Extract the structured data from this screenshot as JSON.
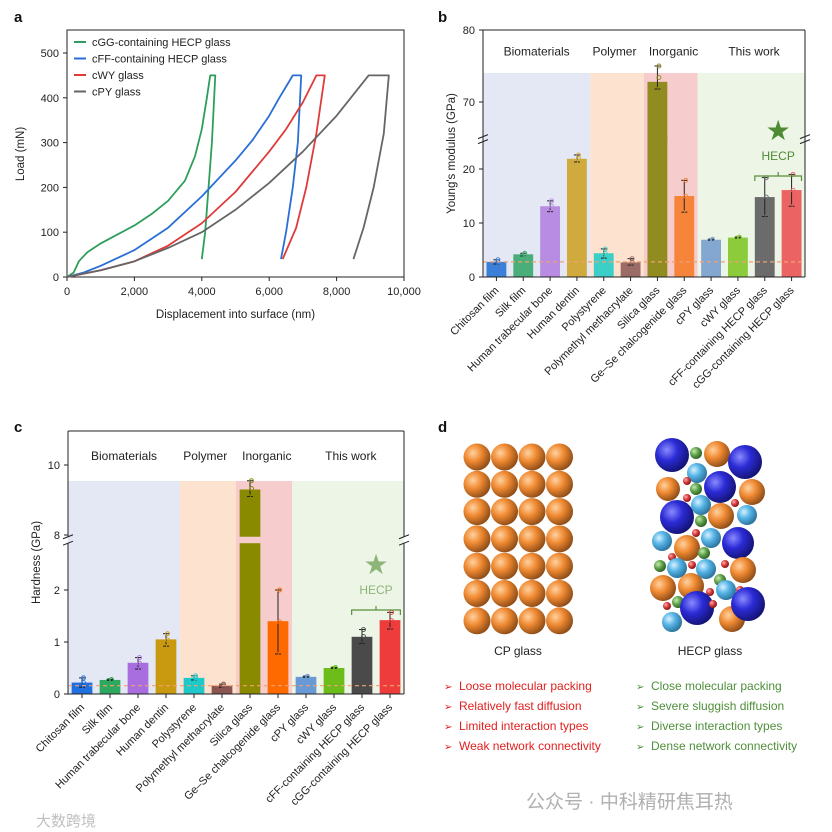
{
  "panel_labels": [
    "a",
    "b",
    "c",
    "d"
  ],
  "chart_data": [
    {
      "type": "line",
      "xlabel": "Displacement into surface (nm)",
      "ylabel": "Load (mN)",
      "xlim": [
        0,
        10000
      ],
      "ylim": [
        0,
        550
      ],
      "xticks": [
        "0",
        "2,000",
        "4,000",
        "6,000",
        "8,000",
        "10,000"
      ],
      "xtick_values": [
        0,
        2000,
        4000,
        6000,
        8000,
        10000
      ],
      "yticks": [
        "0",
        "100",
        "200",
        "300",
        "400",
        "500"
      ],
      "ytick_values": [
        0,
        100,
        200,
        300,
        400,
        500
      ],
      "legend_position": "top-left",
      "series": [
        {
          "name": "cGG-containing HECP glass",
          "color": "#2e9e5b",
          "x": [
            0,
            200,
            350,
            600,
            1000,
            1500,
            2000,
            2500,
            3000,
            3500,
            3800,
            4000,
            4150,
            4250,
            4400,
            4400,
            4300,
            4200,
            4100,
            4000
          ],
          "y": [
            0,
            10,
            35,
            55,
            75,
            95,
            115,
            140,
            170,
            215,
            270,
            330,
            400,
            450,
            450,
            450,
            300,
            200,
            100,
            40
          ]
        },
        {
          "name": "cFF-containing HECP glass",
          "color": "#2a6fd6",
          "x": [
            0,
            500,
            1000,
            2000,
            3000,
            4000,
            5000,
            5500,
            6000,
            6300,
            6500,
            6700,
            6950,
            6850,
            6700,
            6500,
            6350
          ],
          "y": [
            0,
            10,
            25,
            60,
            110,
            180,
            260,
            305,
            360,
            400,
            425,
            450,
            450,
            300,
            200,
            100,
            40
          ]
        },
        {
          "name": "cWY glass",
          "color": "#e03b3b",
          "x": [
            0,
            1000,
            2000,
            3000,
            4000,
            5000,
            6000,
            6500,
            7000,
            7400,
            7650,
            7400,
            7100,
            6800,
            6400
          ],
          "y": [
            0,
            15,
            35,
            70,
            120,
            190,
            280,
            330,
            390,
            450,
            450,
            320,
            200,
            110,
            40
          ]
        },
        {
          "name": "cPY glass",
          "color": "#666666",
          "x": [
            0,
            1000,
            2000,
            3000,
            4000,
            5000,
            6000,
            7000,
            8000,
            8950,
            9550,
            9400,
            9100,
            8800,
            8500
          ],
          "y": [
            0,
            15,
            35,
            65,
            100,
            150,
            210,
            280,
            360,
            450,
            450,
            320,
            200,
            110,
            40
          ]
        }
      ]
    },
    {
      "type": "bar",
      "ylabel": "Young's modulus (GPa)",
      "yticks": [
        "0",
        "10",
        "20",
        "70",
        "80"
      ],
      "ytick_values": [
        0,
        10,
        20,
        70,
        80
      ],
      "ybreak": [
        26,
        64.5
      ],
      "groups": [
        {
          "name": "Biomaterials",
          "color": "#e4e8f5",
          "from": 0,
          "to": 3,
          "text_color": "#222"
        },
        {
          "name": "Polymer",
          "color": "#fde3cf",
          "from": 4,
          "to": 5,
          "text_color": "#222"
        },
        {
          "name": "Inorganic",
          "color": "#f7cccc",
          "from": 6,
          "to": 7,
          "text_color": "#222"
        },
        {
          "name": "This work",
          "color": "#edf5e6",
          "from": 8,
          "to": 11,
          "text_color": "#5a8f3a"
        }
      ],
      "categories": [
        "Chitosan film",
        "Silk film",
        "Human trabecular bone",
        "Human dentin",
        "Polystyrene",
        "Polymethyl methacrylate",
        "Silica glass",
        "Ge–Se chalcogenide glass",
        "cPY glass",
        "cWY glass",
        "cFF-containing HECP glass",
        "cGG-containing HECP glass"
      ],
      "values": [
        2.8,
        4.2,
        13.1,
        21.9,
        4.4,
        2.7,
        72.8,
        15.0,
        6.9,
        7.3,
        14.8,
        16.1
      ],
      "err_low": [
        2.4,
        3.9,
        12.1,
        21.3,
        3.5,
        2.2,
        71.8,
        12.0,
        6.8,
        7.2,
        11.2,
        13.1
      ],
      "err_high": [
        3.2,
        4.4,
        14.1,
        22.6,
        5.2,
        3.4,
        75.0,
        17.9,
        7.0,
        7.4,
        18.4,
        19.0
      ],
      "colors": [
        "#3b7fd8",
        "#4aae7a",
        "#b88ce2",
        "#d0aa3c",
        "#3ccfc7",
        "#9b6b66",
        "#908c1f",
        "#f6843b",
        "#83a7d1",
        "#8ccb3c",
        "#6b6b6b",
        "#eb6363"
      ],
      "reference_line": 2.8,
      "annotation": {
        "text": "HECP",
        "star": "★",
        "color": "#4f8a35"
      }
    },
    {
      "type": "bar",
      "ylabel": "Hardness (GPa)",
      "yticks": [
        "0",
        "1",
        "2",
        "8",
        "10"
      ],
      "ytick_values": [
        0,
        1,
        2,
        8,
        10
      ],
      "ybreak": [
        2.9,
        7.95
      ],
      "groups": [
        {
          "name": "Biomaterials",
          "color": "#e4e8f5",
          "from": 0,
          "to": 3,
          "text_color": "#222"
        },
        {
          "name": "Polymer",
          "color": "#fde3cf",
          "from": 4,
          "to": 5,
          "text_color": "#222"
        },
        {
          "name": "Inorganic",
          "color": "#f7cccc",
          "from": 6,
          "to": 7,
          "text_color": "#222"
        },
        {
          "name": "This work",
          "color": "#edf5e6",
          "from": 8,
          "to": 11,
          "text_color": "#5a8f3a"
        }
      ],
      "categories": [
        "Chitosan film",
        "Silk film",
        "Human trabecular bone",
        "Human dentin",
        "Polystyrene",
        "Polymethyl methacrylate",
        "Silica glass",
        "Ge–Se chalcogenide glass",
        "cPY glass",
        "cWY glass",
        "cFF-containing HECP glass",
        "cGG-containing HECP glass"
      ],
      "values": [
        0.22,
        0.27,
        0.6,
        1.05,
        0.31,
        0.16,
        9.3,
        1.4,
        0.33,
        0.5,
        1.1,
        1.42
      ],
      "err_low": [
        0.13,
        0.26,
        0.48,
        0.92,
        0.27,
        0.13,
        9.1,
        0.77,
        0.32,
        0.49,
        0.97,
        1.25
      ],
      "err_high": [
        0.31,
        0.28,
        0.7,
        1.16,
        0.35,
        0.19,
        9.55,
        2.0,
        0.34,
        0.51,
        1.24,
        1.57
      ],
      "colors": [
        "#1f6fe0",
        "#2fa85f",
        "#a86ee0",
        "#c99a10",
        "#1fc9c9",
        "#8a5550",
        "#8a8a00",
        "#ff6a00",
        "#6a9ad6",
        "#6cbd1a",
        "#4a4a4a",
        "#ee3b3b"
      ],
      "reference_line": 0.16,
      "annotation": {
        "text": "HECP",
        "star": "★",
        "color": "#8db57a"
      }
    }
  ],
  "schematic": {
    "cp_title": "CP glass",
    "hecp_title": "HECP glass",
    "cp_points": [
      "Loose molecular packing",
      "Relatively fast diffusion",
      "Limited interaction types",
      "Weak network connectivity"
    ],
    "hecp_points": [
      "Close molecular packing",
      "Severe sluggish diffusion",
      "Diverse interaction types",
      "Dense network connectivity"
    ],
    "bullet": "➢",
    "cp_color": "#e0201e",
    "hecp_color": "#4f8f3a"
  },
  "watermarks": {
    "right": "公众号 · 中科精研焦耳热",
    "left": "大数跨境"
  }
}
